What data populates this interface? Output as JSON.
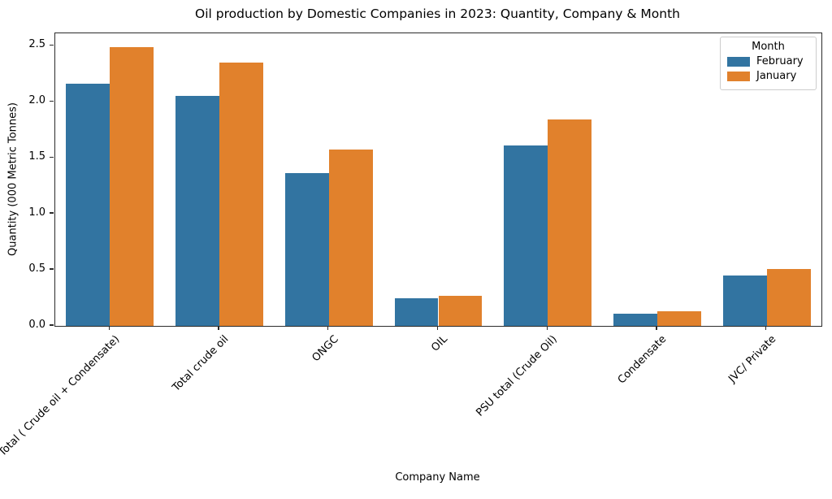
{
  "chart_data": {
    "type": "bar",
    "title": "Oil production by Domestic Companies in 2023: Quantity, Company & Month",
    "xlabel": "Company Name",
    "ylabel": "Quantity (000 Metric Tonnes)",
    "categories": [
      "Total ( Crude oil + Condensate)",
      "Total crude oil",
      "ONGC",
      "OIL",
      "PSU total (Crude Oil)",
      "Condensate",
      "JVC/ Private"
    ],
    "series": [
      {
        "name": "February",
        "color": "#3274a1",
        "values": [
          2.16,
          2.05,
          1.36,
          0.25,
          1.61,
          0.11,
          0.45
        ]
      },
      {
        "name": "January",
        "color": "#e1812c",
        "values": [
          2.49,
          2.35,
          1.57,
          0.27,
          1.84,
          0.13,
          0.51
        ]
      }
    ],
    "ylim": [
      0,
      2.61
    ],
    "ytick_labels": [
      "0.0",
      "0.5",
      "1.0",
      "1.5",
      "2.0",
      "2.5"
    ],
    "xtick_rotation_deg": 45,
    "grid": false,
    "legend": {
      "title": "Month",
      "position": "upper right"
    }
  }
}
